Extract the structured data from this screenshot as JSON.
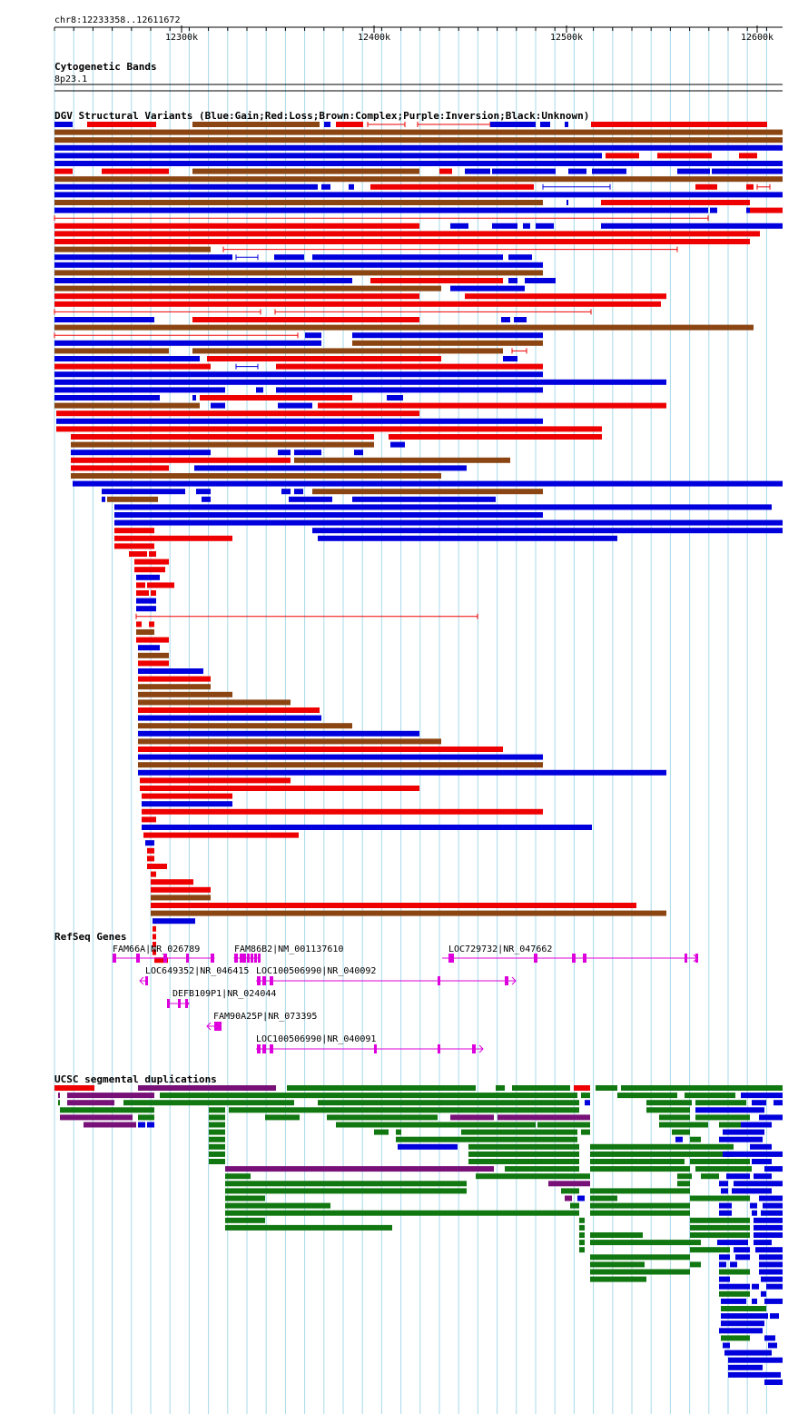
{
  "header": {
    "position": "chr8:12233358..12611672",
    "ticks": [
      "12300k",
      "12400k",
      "12500k",
      "12600k"
    ]
  },
  "tracks": {
    "cytoband": {
      "title": "Cytogenetic Bands",
      "band": "8p23.1"
    },
    "dgv": {
      "title": "DGV Structural Variants (Blue:Gain;Red:Loss;Brown:Complex;Purple:Inversion;Black:Unknown)"
    },
    "refseq": {
      "title": "RefSeq Genes",
      "genes": [
        "FAM66A|NR_026789",
        "FAM86B2|NM_001137610",
        "LOC729732|NR_047662",
        "LOC649352|NR_046415",
        "LOC100506990|NR_040092",
        "DEFB109P1|NR_024044",
        "FAM90A25P|NR_073395",
        "LOC100506990|NR_040091"
      ]
    },
    "segdups": {
      "title": "UCSC segmental duplications"
    }
  },
  "colors": {
    "gain": "#0000dd",
    "loss": "#ee0000",
    "complex": "#8b4513",
    "gene": "#dd00dd",
    "segdup_green": "#117711",
    "segdup_purple": "#771177",
    "segdup_red": "#ee0000",
    "segdup_blue": "#0000dd",
    "gridline": "#a8d8ea"
  }
}
